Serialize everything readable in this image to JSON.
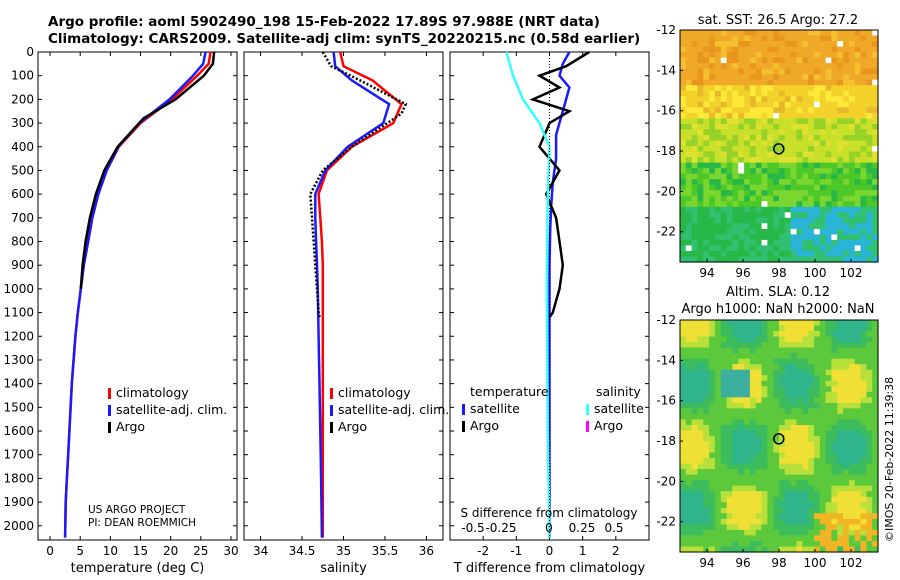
{
  "titles": {
    "line1": "Argo profile: aoml 5902490_198 15-Feb-2022 17.89S 97.988E (NRT data)",
    "line2": "Climatology: CARS2009. Satellite-adj clim: synTS_20220215.nc (0.58d earlier)"
  },
  "colors": {
    "climatology": "#ff0000",
    "satellite": "#1a1aff",
    "argo": "#000000",
    "sal_satellite": "#33ffff",
    "sal_argo": "#ff00ff"
  },
  "project_note": [
    "US ARGO PROJECT",
    "PI: DEAN ROEMMICH"
  ],
  "legend": {
    "climatology": "climatology",
    "satellite": "satellite-adj. clim.",
    "argo": "Argo"
  },
  "diff_legend": {
    "temperature": "temperature",
    "salinity": "salinity",
    "satellite": "satellite",
    "argo": "Argo"
  },
  "diff_top_label": "S difference from climatology",
  "sst_map": {
    "title": "sat. SST: 26.5 Argo: 27.2"
  },
  "sla_map": {
    "title1": "Altim. SLA: 0.12",
    "title2": "Argo h1000: NaN h2000: NaN"
  },
  "timestamp": "©IMOS 20-Feb-2022 11:39:38",
  "chart_data": [
    {
      "type": "line",
      "name": "temperature-profile",
      "xlabel": "temperature (deg C)",
      "ylabel": "",
      "xlim": [
        -2,
        31
      ],
      "ylim": [
        2060,
        0
      ],
      "xticks": [
        0,
        5,
        10,
        15,
        20,
        25,
        30
      ],
      "yticks": [
        0,
        100,
        200,
        300,
        400,
        500,
        600,
        700,
        800,
        900,
        1000,
        1100,
        1200,
        1300,
        1400,
        1500,
        1600,
        1700,
        1800,
        1900,
        2000
      ],
      "series": [
        {
          "name": "climatology",
          "color": "red",
          "x": [
            26.6,
            26.3,
            24.4,
            20.2,
            15.0,
            11.4,
            9.4,
            8.0,
            7.0,
            6.3,
            5.6,
            5.1,
            4.6,
            4.2,
            3.9,
            3.6,
            3.4,
            3.2,
            3.0,
            2.8,
            2.6,
            2.5
          ],
          "y": [
            0,
            50,
            100,
            200,
            300,
            400,
            500,
            600,
            700,
            800,
            900,
            1000,
            1100,
            1200,
            1300,
            1400,
            1500,
            1600,
            1700,
            1800,
            1900,
            2050
          ]
        },
        {
          "name": "satellite-adj. clim.",
          "color": "blue",
          "x": [
            25.8,
            25.4,
            23.7,
            19.8,
            14.8,
            11.3,
            9.4,
            8.0,
            7.0,
            6.3,
            5.6,
            5.1,
            4.6,
            4.2,
            3.9,
            3.6,
            3.4,
            3.2,
            3.0,
            2.8,
            2.6,
            2.5
          ],
          "y": [
            0,
            50,
            100,
            200,
            300,
            400,
            500,
            600,
            700,
            800,
            900,
            1000,
            1100,
            1200,
            1300,
            1400,
            1500,
            1600,
            1700,
            1800,
            1900,
            2050
          ]
        },
        {
          "name": "Argo",
          "color": "black",
          "x": [
            27.2,
            27.0,
            25.5,
            20.8,
            15.5,
            11.2,
            9.0,
            7.6,
            6.6,
            5.9,
            5.4,
            5.1
          ],
          "y": [
            0,
            50,
            100,
            200,
            280,
            400,
            500,
            600,
            700,
            800,
            900,
            1000
          ]
        }
      ]
    },
    {
      "type": "line",
      "name": "salinity-profile",
      "xlabel": "salinity",
      "xlim": [
        33.8,
        36.2
      ],
      "ylim": [
        2060,
        0
      ],
      "xticks": [
        34,
        34.5,
        35,
        35.5,
        36
      ],
      "series": [
        {
          "name": "climatology",
          "color": "red",
          "x": [
            34.96,
            35.0,
            35.35,
            35.7,
            35.6,
            35.1,
            34.8,
            34.7,
            34.72,
            34.74,
            34.75,
            34.75,
            34.75,
            34.75,
            34.75,
            34.75,
            34.75
          ],
          "y": [
            0,
            60,
            120,
            220,
            300,
            400,
            500,
            600,
            700,
            800,
            900,
            1000,
            1200,
            1400,
            1600,
            1800,
            2050
          ]
        },
        {
          "name": "satellite-adj. clim.",
          "color": "blue",
          "x": [
            34.88,
            34.9,
            35.1,
            35.55,
            35.48,
            35.05,
            34.78,
            34.66,
            34.66,
            34.67,
            34.68,
            34.69,
            34.7,
            34.71,
            34.72,
            34.73,
            34.74
          ],
          "y": [
            0,
            60,
            120,
            220,
            300,
            400,
            500,
            600,
            700,
            800,
            900,
            1000,
            1200,
            1400,
            1600,
            1800,
            2050
          ]
        },
        {
          "name": "Argo",
          "color": "black",
          "x": [
            34.75,
            34.85,
            35.2,
            35.75,
            35.7,
            35.1,
            34.75,
            34.6,
            34.62,
            34.64,
            34.66,
            34.68,
            34.69,
            34.7,
            34.71
          ],
          "y": [
            0,
            60,
            120,
            220,
            260,
            400,
            500,
            600,
            700,
            800,
            900,
            1000,
            1050,
            1100,
            1120
          ]
        }
      ]
    },
    {
      "type": "line",
      "name": "difference-profile",
      "xlabel": "T difference from climatology",
      "xlim": [
        -3,
        3
      ],
      "ylim": [
        2060,
        0
      ],
      "xticks": [
        -2,
        -1,
        0,
        1,
        2
      ],
      "s_xticks": [
        "-0.5",
        "-0.25",
        "0",
        "0.25",
        "0.5"
      ],
      "series": [
        {
          "name": "temperature satellite",
          "color": "blue",
          "x": [
            0.6,
            0.4,
            0.3,
            0.6,
            0.4,
            0.2,
            0.2,
            0.1,
            0.05,
            0.02,
            0.0,
            0.0,
            0.0,
            0.0,
            0.0,
            0.0
          ],
          "y": [
            0,
            50,
            100,
            150,
            250,
            350,
            450,
            550,
            650,
            750,
            900,
            1000,
            1200,
            1500,
            1800,
            2050
          ]
        },
        {
          "name": "temperature Argo",
          "color": "black",
          "x": [
            1.2,
            0.5,
            -0.3,
            0.3,
            -0.5,
            0.6,
            0.0,
            -0.3,
            0.3,
            -0.1,
            0.2,
            0.3,
            0.4,
            0.3,
            0.2,
            0.1,
            0.0
          ],
          "y": [
            0,
            60,
            100,
            150,
            200,
            250,
            300,
            400,
            500,
            600,
            700,
            800,
            900,
            1000,
            1050,
            1100,
            1120
          ]
        },
        {
          "name": "salinity satellite",
          "color": "cyan",
          "x": [
            -1.3,
            -1.1,
            -0.8,
            -0.3,
            0.0,
            -0.05,
            -0.07,
            -0.08,
            -0.07,
            -0.06,
            -0.05,
            -0.03,
            0.0
          ],
          "y": [
            0,
            100,
            200,
            300,
            400,
            600,
            800,
            1000,
            1200,
            1400,
            1600,
            1800,
            2050
          ]
        }
      ]
    },
    {
      "type": "heatmap",
      "name": "sst-map",
      "xticks": [
        94,
        96,
        98,
        100,
        102
      ],
      "yticks": [
        -12,
        -14,
        -16,
        -18,
        -20,
        -22
      ],
      "xlim": [
        92.5,
        103.5
      ],
      "ylim": [
        -23.5,
        -12
      ],
      "argo_position": [
        97.988,
        -17.89
      ]
    },
    {
      "type": "heatmap",
      "name": "sla-map",
      "xticks": [
        94,
        96,
        98,
        100,
        102
      ],
      "yticks": [
        -12,
        -14,
        -16,
        -18,
        -20,
        -22
      ],
      "xlim": [
        92.5,
        103.5
      ],
      "ylim": [
        -23.5,
        -12
      ],
      "argo_position": [
        97.988,
        -17.89
      ]
    }
  ]
}
